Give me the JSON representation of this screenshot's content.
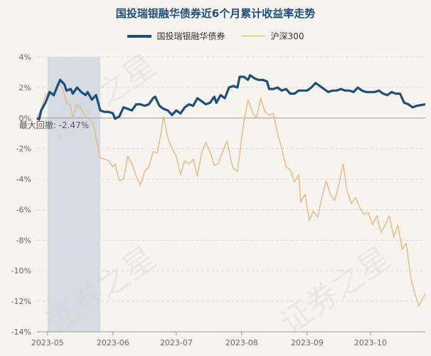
{
  "colors": {
    "fund": "#1f4e79",
    "index": "#e8b47a",
    "drawdown": "#c9d4df",
    "grid": "#e3dbd3",
    "axis": "#999999"
  },
  "chart_data": {
    "type": "line",
    "title": "国投瑞银融华债券近6个月累计收益率走势",
    "ylim": [
      -14,
      4
    ],
    "xlim": [
      "2023-04-26",
      "2023-10-27"
    ],
    "y_ticks": [
      "4%",
      "2%",
      "0%",
      "-2%",
      "-4%",
      "-6%",
      "-8%",
      "-10%",
      "-12%",
      "-14%"
    ],
    "y_tick_values": [
      4,
      2,
      0,
      -2,
      -4,
      -6,
      -8,
      -10,
      -12,
      -14
    ],
    "x_ticks": [
      "2023-05",
      "2023-06",
      "2023-07",
      "2023-08",
      "2023-09",
      "2023-10"
    ],
    "x_tick_dates": [
      "2023-05-01",
      "2023-06-01",
      "2023-07-01",
      "2023-08-01",
      "2023-09-01",
      "2023-10-01"
    ],
    "grid": true,
    "legend_position": "top-center",
    "annotation": {
      "label": "最大回撤:",
      "value": "-2.47%",
      "start": "2023-05-01",
      "end": "2023-05-26"
    },
    "series": [
      {
        "name": "国投瑞银融华债券",
        "points": [
          [
            "2023-04-26",
            0.0
          ],
          [
            "2023-04-27",
            -0.1
          ],
          [
            "2023-04-28",
            0.5
          ],
          [
            "2023-04-30",
            1.0
          ],
          [
            "2023-05-02",
            1.7
          ],
          [
            "2023-05-04",
            1.5
          ],
          [
            "2023-05-06",
            2.2
          ],
          [
            "2023-05-07",
            2.5
          ],
          [
            "2023-05-09",
            2.2
          ],
          [
            "2023-05-10",
            1.8
          ],
          [
            "2023-05-12",
            1.9
          ],
          [
            "2023-05-13",
            1.6
          ],
          [
            "2023-05-15",
            2.0
          ],
          [
            "2023-05-17",
            1.7
          ],
          [
            "2023-05-19",
            1.5
          ],
          [
            "2023-05-20",
            1.7
          ],
          [
            "2023-05-22",
            1.2
          ],
          [
            "2023-05-24",
            1.5
          ],
          [
            "2023-05-26",
            0.5
          ],
          [
            "2023-05-28",
            0.4
          ],
          [
            "2023-05-30",
            0.4
          ],
          [
            "2023-06-01",
            0.3
          ],
          [
            "2023-06-02",
            -0.05
          ],
          [
            "2023-06-04",
            0.1
          ],
          [
            "2023-06-06",
            0.7
          ],
          [
            "2023-06-08",
            0.6
          ],
          [
            "2023-06-10",
            0.5
          ],
          [
            "2023-06-12",
            0.9
          ],
          [
            "2023-06-14",
            0.9
          ],
          [
            "2023-06-16",
            0.8
          ],
          [
            "2023-06-18",
            0.9
          ],
          [
            "2023-06-20",
            1.3
          ],
          [
            "2023-06-21",
            1.4
          ],
          [
            "2023-06-23",
            0.8
          ],
          [
            "2023-06-25",
            0.6
          ],
          [
            "2023-06-27",
            0.5
          ],
          [
            "2023-06-29",
            0.2
          ],
          [
            "2023-07-01",
            0.5
          ],
          [
            "2023-07-03",
            0.3
          ],
          [
            "2023-07-05",
            0.7
          ],
          [
            "2023-07-07",
            0.9
          ],
          [
            "2023-07-09",
            0.8
          ],
          [
            "2023-07-11",
            1.3
          ],
          [
            "2023-07-13",
            1.1
          ],
          [
            "2023-07-15",
            0.9
          ],
          [
            "2023-07-17",
            1.0
          ],
          [
            "2023-07-19",
            1.4
          ],
          [
            "2023-07-20",
            1.0
          ],
          [
            "2023-07-22",
            1.5
          ],
          [
            "2023-07-24",
            1.3
          ],
          [
            "2023-07-26",
            2.0
          ],
          [
            "2023-07-28",
            2.1
          ],
          [
            "2023-07-30",
            2.0
          ],
          [
            "2023-07-31",
            2.7
          ],
          [
            "2023-08-02",
            2.7
          ],
          [
            "2023-08-04",
            2.5
          ],
          [
            "2023-08-05",
            2.8
          ],
          [
            "2023-08-07",
            2.6
          ],
          [
            "2023-08-09",
            2.5
          ],
          [
            "2023-08-11",
            2.5
          ],
          [
            "2023-08-13",
            2.4
          ],
          [
            "2023-08-14",
            1.9
          ],
          [
            "2023-08-16",
            1.9
          ],
          [
            "2023-08-18",
            2.0
          ],
          [
            "2023-08-20",
            1.8
          ],
          [
            "2023-08-22",
            1.9
          ],
          [
            "2023-08-24",
            1.6
          ],
          [
            "2023-08-26",
            1.6
          ],
          [
            "2023-08-28",
            1.8
          ],
          [
            "2023-08-30",
            1.8
          ],
          [
            "2023-09-01",
            1.8
          ],
          [
            "2023-09-03",
            2.0
          ],
          [
            "2023-09-05",
            2.3
          ],
          [
            "2023-09-07",
            2.1
          ],
          [
            "2023-09-09",
            1.9
          ],
          [
            "2023-09-11",
            1.7
          ],
          [
            "2023-09-13",
            1.8
          ],
          [
            "2023-09-15",
            1.8
          ],
          [
            "2023-09-17",
            1.9
          ],
          [
            "2023-09-19",
            1.8
          ],
          [
            "2023-09-21",
            1.8
          ],
          [
            "2023-09-23",
            1.7
          ],
          [
            "2023-09-25",
            2.0
          ],
          [
            "2023-09-27",
            1.8
          ],
          [
            "2023-09-29",
            1.7
          ],
          [
            "2023-10-03",
            1.7
          ],
          [
            "2023-10-05",
            1.8
          ],
          [
            "2023-10-07",
            1.6
          ],
          [
            "2023-10-09",
            1.5
          ],
          [
            "2023-10-11",
            1.7
          ],
          [
            "2023-10-13",
            1.6
          ],
          [
            "2023-10-15",
            1.6
          ],
          [
            "2023-10-17",
            1.0
          ],
          [
            "2023-10-19",
            0.9
          ],
          [
            "2023-10-21",
            0.7
          ],
          [
            "2023-10-23",
            0.8
          ],
          [
            "2023-10-27",
            0.9
          ]
        ]
      },
      {
        "name": "沪深300",
        "points": [
          [
            "2023-04-26",
            0.0
          ],
          [
            "2023-04-28",
            0.6
          ],
          [
            "2023-04-30",
            1.5
          ],
          [
            "2023-05-02",
            1.8
          ],
          [
            "2023-05-04",
            1.4
          ],
          [
            "2023-05-06",
            2.3
          ],
          [
            "2023-05-08",
            2.0
          ],
          [
            "2023-05-10",
            1.0
          ],
          [
            "2023-05-12",
            0.8
          ],
          [
            "2023-05-13",
            0.0
          ],
          [
            "2023-05-15",
            0.9
          ],
          [
            "2023-05-17",
            0.6
          ],
          [
            "2023-05-19",
            0.1
          ],
          [
            "2023-05-21",
            -0.1
          ],
          [
            "2023-05-23",
            -0.5
          ],
          [
            "2023-05-24",
            -1.3
          ],
          [
            "2023-05-26",
            -2.6
          ],
          [
            "2023-05-28",
            -2.7
          ],
          [
            "2023-05-30",
            -2.8
          ],
          [
            "2023-06-01",
            -3.2
          ],
          [
            "2023-06-02",
            -3.0
          ],
          [
            "2023-06-04",
            -4.1
          ],
          [
            "2023-06-06",
            -4.0
          ],
          [
            "2023-06-08",
            -2.5
          ],
          [
            "2023-06-10",
            -3.0
          ],
          [
            "2023-06-12",
            -3.8
          ],
          [
            "2023-06-14",
            -4.4
          ],
          [
            "2023-06-16",
            -3.5
          ],
          [
            "2023-06-18",
            -3.2
          ],
          [
            "2023-06-20",
            -2.2
          ],
          [
            "2023-06-22",
            -2.3
          ],
          [
            "2023-06-24",
            -0.8
          ],
          [
            "2023-06-25",
            0.1
          ],
          [
            "2023-06-27",
            -1.3
          ],
          [
            "2023-06-29",
            -2.0
          ],
          [
            "2023-07-01",
            -2.5
          ],
          [
            "2023-07-03",
            -3.7
          ],
          [
            "2023-07-05",
            -2.8
          ],
          [
            "2023-07-07",
            -3.0
          ],
          [
            "2023-07-09",
            -2.7
          ],
          [
            "2023-07-11",
            -3.8
          ],
          [
            "2023-07-13",
            -2.3
          ],
          [
            "2023-07-15",
            -1.6
          ],
          [
            "2023-07-17",
            -2.2
          ],
          [
            "2023-07-19",
            -3.1
          ],
          [
            "2023-07-21",
            -3.0
          ],
          [
            "2023-07-23",
            -2.2
          ],
          [
            "2023-07-25",
            -1.5
          ],
          [
            "2023-07-27",
            -2.8
          ],
          [
            "2023-07-28",
            -3.3
          ],
          [
            "2023-07-30",
            -3.5
          ],
          [
            "2023-08-01",
            -1.3
          ],
          [
            "2023-08-02",
            -0.3
          ],
          [
            "2023-08-04",
            1.2
          ],
          [
            "2023-08-06",
            0.4
          ],
          [
            "2023-08-08",
            0.0
          ],
          [
            "2023-08-10",
            1.3
          ],
          [
            "2023-08-12",
            0.4
          ],
          [
            "2023-08-14",
            0.2
          ],
          [
            "2023-08-16",
            0.3
          ],
          [
            "2023-08-18",
            -1.0
          ],
          [
            "2023-08-20",
            -2.0
          ],
          [
            "2023-08-22",
            -3.2
          ],
          [
            "2023-08-24",
            -3.4
          ],
          [
            "2023-08-26",
            -4.2
          ],
          [
            "2023-08-28",
            -3.7
          ],
          [
            "2023-08-29",
            -5.5
          ],
          [
            "2023-08-31",
            -5.0
          ],
          [
            "2023-09-02",
            -6.7
          ],
          [
            "2023-09-04",
            -6.1
          ],
          [
            "2023-09-06",
            -6.5
          ],
          [
            "2023-09-08",
            -5.2
          ],
          [
            "2023-09-10",
            -4.1
          ],
          [
            "2023-09-12",
            -5.0
          ],
          [
            "2023-09-14",
            -5.4
          ],
          [
            "2023-09-16",
            -4.4
          ],
          [
            "2023-09-18",
            -3.0
          ],
          [
            "2023-09-20",
            -4.8
          ],
          [
            "2023-09-22",
            -5.6
          ],
          [
            "2023-09-24",
            -5.2
          ],
          [
            "2023-09-26",
            -5.9
          ],
          [
            "2023-09-28",
            -6.3
          ],
          [
            "2023-09-30",
            -6.2
          ],
          [
            "2023-10-02",
            -7.0
          ],
          [
            "2023-10-04",
            -6.4
          ],
          [
            "2023-10-06",
            -7.5
          ],
          [
            "2023-10-08",
            -7.0
          ],
          [
            "2023-10-10",
            -6.4
          ],
          [
            "2023-10-12",
            -7.8
          ],
          [
            "2023-10-14",
            -7.0
          ],
          [
            "2023-10-16",
            -8.6
          ],
          [
            "2023-10-18",
            -8.2
          ],
          [
            "2023-10-20",
            -10.4
          ],
          [
            "2023-10-22",
            -11.5
          ],
          [
            "2023-10-24",
            -12.3
          ],
          [
            "2023-10-27",
            -11.5
          ]
        ]
      }
    ]
  },
  "watermark": [
    "证券之星",
    "证券之星",
    "证券之星"
  ]
}
